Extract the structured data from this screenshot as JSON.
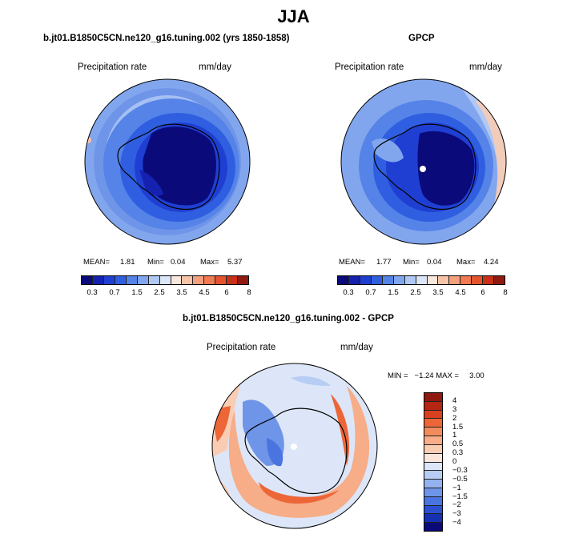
{
  "figure": {
    "title": "JJA"
  },
  "panels": [
    {
      "title": "b.jt01.B1850C5CN.ne120_g16.tuning.002 (yrs 1850-1858)",
      "variable": "Precipitation rate",
      "units": "mm/day",
      "mean_label": "MEAN=",
      "mean": "1.81",
      "min_label": "Min=",
      "min": "0.04",
      "max_label": "Max=",
      "max": "5.37"
    },
    {
      "title": "GPCP",
      "variable": "Precipitation rate",
      "units": "mm/day",
      "mean_label": "MEAN=",
      "mean": "1.77",
      "min_label": "Min=",
      "min": "0.04",
      "max_label": "Max=",
      "max": "4.24"
    },
    {
      "title": "b.jt01.B1850C5CN.ne120_g16.tuning.002 - GPCP",
      "variable": "Precipitation rate",
      "units": "mm/day",
      "stats_line": "MIN =   −1.24 MAX =     3.00"
    }
  ],
  "colorbar_abs": {
    "colors": [
      "#0a0a7a",
      "#1522b0",
      "#1f3fd2",
      "#2f5fe0",
      "#5583e8",
      "#82a6ee",
      "#b0c8f4",
      "#dce6f8",
      "#fbe6dc",
      "#f8c4a8",
      "#f5a07c",
      "#f07a52",
      "#e5532e",
      "#c83018",
      "#8e1a10"
    ],
    "tick_labels": [
      "0.3",
      "0.7",
      "1.5",
      "2.5",
      "3.5",
      "4.5",
      "6",
      "8"
    ]
  },
  "colorbar_diff": {
    "colors": [
      "#8e1a10",
      "#b52614",
      "#d8401e",
      "#ec6638",
      "#f38c5c",
      "#f6ad88",
      "#f9ccb4",
      "#fbe6dc",
      "#dce6f8",
      "#b8cdf3",
      "#94b3ee",
      "#6f95e8",
      "#4a74e0",
      "#2a50d0",
      "#1530b0",
      "#0a0a7a"
    ],
    "tick_labels": [
      "4",
      "3",
      "2",
      "1.5",
      "1",
      "0.5",
      "0.3",
      "0",
      "−0.3",
      "−0.5",
      "−1",
      "−1.5",
      "−2",
      "−3",
      "−4"
    ]
  },
  "colors": {
    "ocean_wet": "#5583e8",
    "ice_dry": "#0a0a7a",
    "coast": "#000000",
    "pole_marker": "#ffffff"
  }
}
